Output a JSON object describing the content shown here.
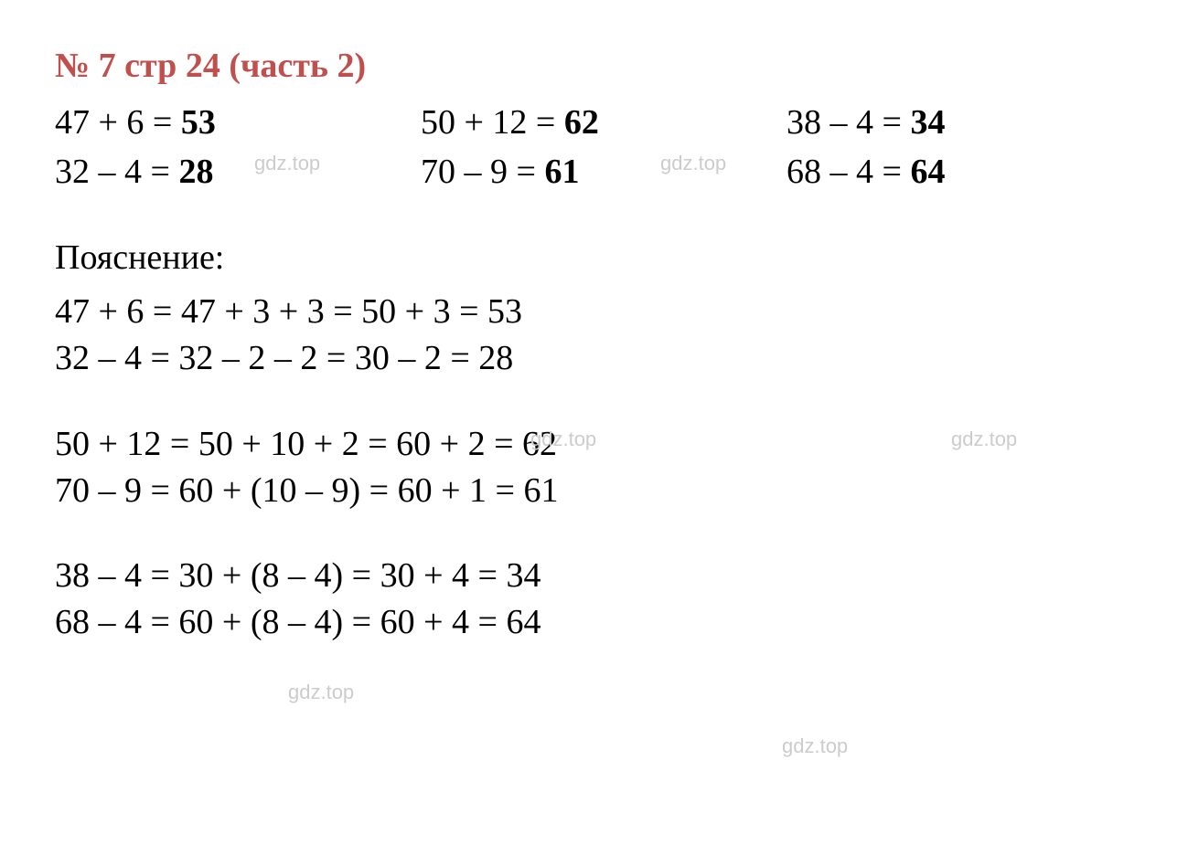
{
  "title": "№ 7 стр 24 (часть 2)",
  "title_color": "#c0504d",
  "background_color": "#ffffff",
  "text_color": "#000000",
  "watermark_text": "gdz.top",
  "watermark_color": "#cccccc",
  "font_family": "Times New Roman",
  "font_size_main": 38,
  "columns": [
    [
      {
        "expr": "47 + 6 = ",
        "result": "53"
      },
      {
        "expr": "32 – 4 = ",
        "result": "28"
      }
    ],
    [
      {
        "expr": "50 + 12 = ",
        "result": "62"
      },
      {
        "expr": "70 – 9 = ",
        "result": "61"
      }
    ],
    [
      {
        "expr": "38 – 4 = ",
        "result": "34"
      },
      {
        "expr": "68 – 4 = ",
        "result": "64"
      }
    ]
  ],
  "explanation_label": "Пояснение:",
  "explanation_blocks": [
    [
      "47 + 6 = 47 + 3 + 3 = 50 + 3 = 53",
      "32 – 4 = 32 – 2 – 2 = 30 – 2 = 28"
    ],
    [
      "50 + 12 =  50 + 10 + 2 = 60 + 2 = 62",
      "70 – 9 = 60 + (10 – 9) = 60 + 1 = 61"
    ],
    [
      "38 – 4 = 30 + (8 – 4) = 30 + 4 = 34",
      "68 – 4 = 60 + (8 – 4) = 60 + 4 = 64"
    ]
  ]
}
